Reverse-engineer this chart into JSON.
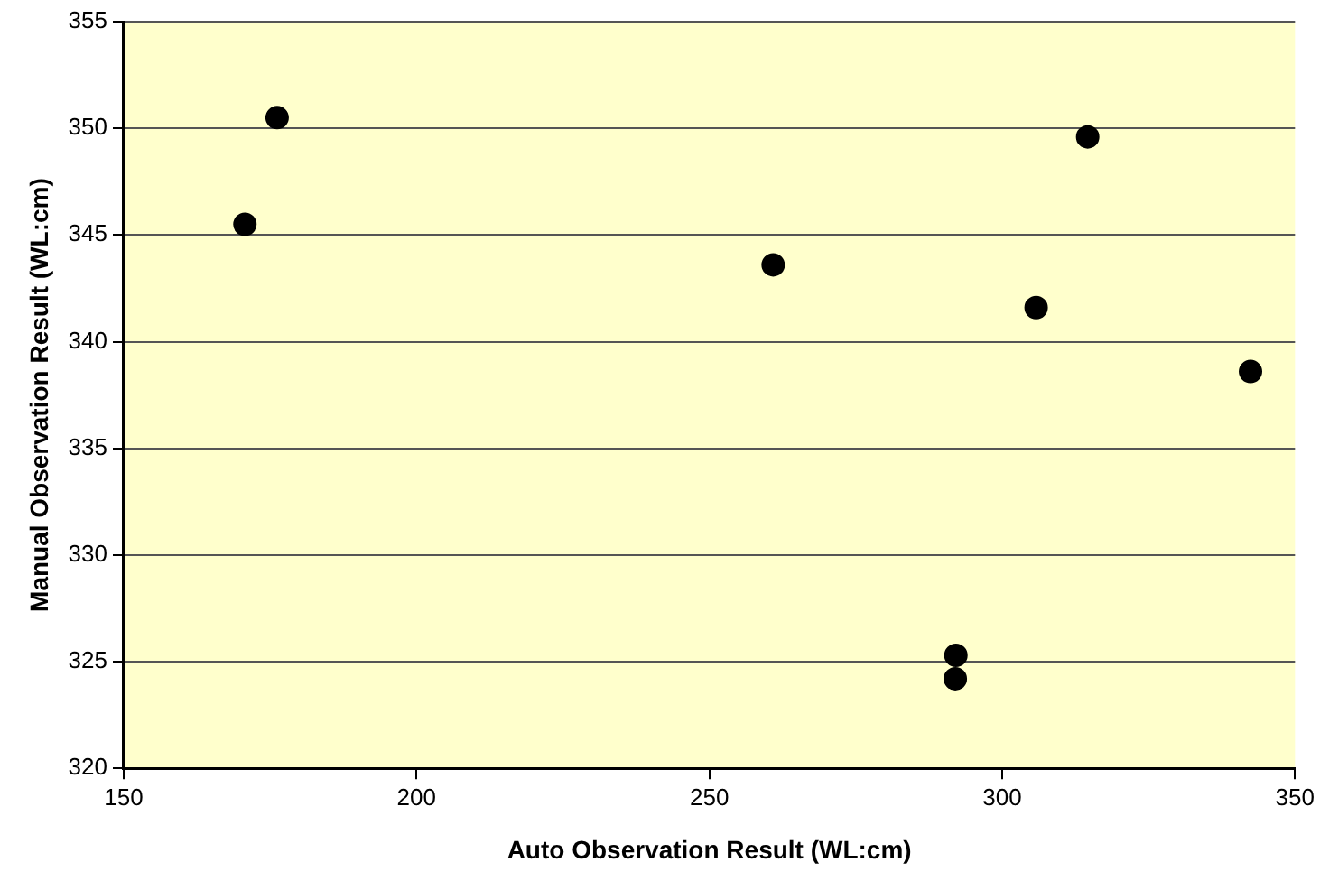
{
  "chart_data": {
    "type": "scatter",
    "xlabel": "Auto Observation Result (WL:cm)",
    "ylabel": "Manual Observation Result (WL:cm)",
    "x": [
      170.7,
      176.2,
      260.9,
      314.6,
      305.8,
      342.4,
      292.1,
      292.0
    ],
    "values": [
      345.5,
      350.5,
      343.6,
      349.6,
      341.6,
      338.6,
      325.3,
      324.2
    ],
    "color": "#000000",
    "marker": "circle",
    "xlim": [
      150,
      350
    ],
    "xticks": [
      150,
      200,
      250,
      300,
      350
    ],
    "ylim": [
      320,
      355
    ],
    "yticks": [
      320,
      325,
      330,
      335,
      340,
      345,
      350,
      355
    ],
    "grid": "y",
    "legend": false
  }
}
